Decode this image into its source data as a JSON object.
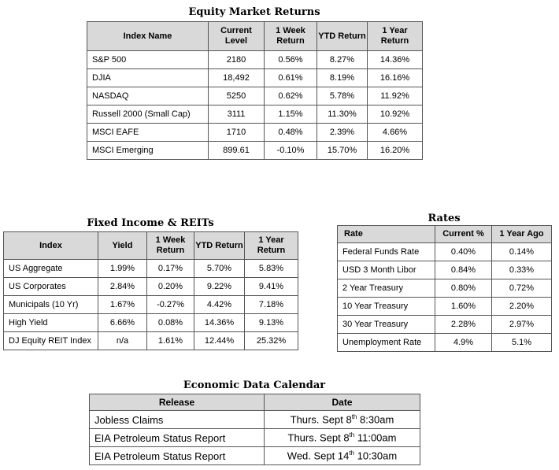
{
  "equity": {
    "title": "Equity Market Returns",
    "headers": [
      "Index Name",
      "Current Level",
      "1 Week Return",
      "YTD Return",
      "1 Year Return"
    ],
    "rows": [
      [
        "S&P 500",
        "2180",
        "0.56%",
        "8.27%",
        "14.36%"
      ],
      [
        "DJIA",
        "18,492",
        "0.61%",
        "8.19%",
        "16.16%"
      ],
      [
        "NASDAQ",
        "5250",
        "0.62%",
        "5.78%",
        "11.92%"
      ],
      [
        "Russell 2000 (Small Cap)",
        "3111",
        "1.15%",
        "11.30%",
        "10.92%"
      ],
      [
        "MSCI EAFE",
        "1710",
        "0.48%",
        "2.39%",
        "4.66%"
      ],
      [
        "MSCI Emerging",
        "899.61",
        "-0.10%",
        "15.70%",
        "16.20%"
      ]
    ]
  },
  "fixed": {
    "title": "Fixed Income & REITs",
    "headers": [
      "Index",
      "Yield",
      "1 Week Return",
      "YTD Return",
      "1 Year Return"
    ],
    "rows": [
      [
        "US Aggregate",
        "1.99%",
        "0.17%",
        "5.70%",
        "5.83%"
      ],
      [
        "US Corporates",
        "2.84%",
        "0.20%",
        "9.22%",
        "9.41%"
      ],
      [
        "Municipals (10 Yr)",
        "1.67%",
        "-0.27%",
        "4.42%",
        "7.18%"
      ],
      [
        "High Yield",
        "6.66%",
        "0.08%",
        "14.36%",
        "9.13%"
      ],
      [
        "DJ Equity REIT Index",
        "n/a",
        "1.61%",
        "12.44%",
        "25.32%"
      ]
    ]
  },
  "rates": {
    "title": "Rates",
    "headers": [
      "Rate",
      "Current %",
      "1 Year Ago"
    ],
    "rows": [
      [
        "Federal Funds Rate",
        "0.40%",
        "0.14%"
      ],
      [
        "USD 3 Month Libor",
        "0.84%",
        "0.33%"
      ],
      [
        "2 Year Treasury",
        "0.80%",
        "0.72%"
      ],
      [
        "10 Year Treasury",
        "1.60%",
        "2.20%"
      ],
      [
        "30 Year Treasury",
        "2.28%",
        "2.97%"
      ],
      [
        "Unemployment Rate",
        "4.9%",
        "5.1%"
      ]
    ]
  },
  "economic": {
    "title": "Economic Data Calendar",
    "headers": [
      "Release",
      "Date"
    ],
    "rows": [
      {
        "release": "Jobless Claims",
        "date_pre": "Thurs. Sept 8",
        "date_sup": "th",
        "date_post": " 8:30am"
      },
      {
        "release": "EIA Petroleum Status Report",
        "date_pre": "Thurs. Sept 8",
        "date_sup": "th",
        "date_post": " 11:00am"
      },
      {
        "release": "EIA Petroleum Status Report",
        "date_pre": "Wed. Sept 14",
        "date_sup": "th",
        "date_post": " 10:30am"
      }
    ]
  }
}
